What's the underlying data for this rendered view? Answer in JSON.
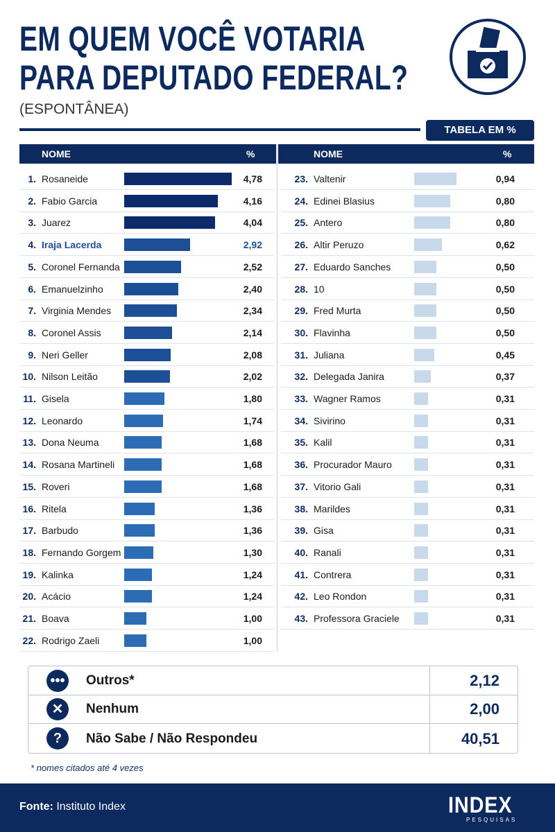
{
  "header": {
    "title_line1": "EM QUEM VOCÊ VOTARIA",
    "title_line2": "PARA DEPUTADO FEDERAL?",
    "subtitle": "(ESPONTÂNEA)",
    "badge": "TABELA EM %"
  },
  "table": {
    "columns": [
      {
        "name": "NOME",
        "percent": "%"
      },
      {
        "name": "NOME",
        "percent": "%"
      }
    ],
    "left": [
      {
        "rank": "1.",
        "name": "Rosaneide",
        "value": 4.78,
        "label": "4,78"
      },
      {
        "rank": "2.",
        "name": "Fabio Garcia",
        "value": 4.16,
        "label": "4,16"
      },
      {
        "rank": "3.",
        "name": "Juarez",
        "value": 4.04,
        "label": "4,04"
      },
      {
        "rank": "4.",
        "name": "Iraja Lacerda",
        "value": 2.92,
        "label": "2,92",
        "highlight": true
      },
      {
        "rank": "5.",
        "name": "Coronel Fernanda",
        "value": 2.52,
        "label": "2,52"
      },
      {
        "rank": "6.",
        "name": "Emanuelzinho",
        "value": 2.4,
        "label": "2,40"
      },
      {
        "rank": "7.",
        "name": "Virginia Mendes",
        "value": 2.34,
        "label": "2,34"
      },
      {
        "rank": "8.",
        "name": "Coronel Assis",
        "value": 2.14,
        "label": "2,14"
      },
      {
        "rank": "9.",
        "name": "Neri Geller",
        "value": 2.08,
        "label": "2,08"
      },
      {
        "rank": "10.",
        "name": "Nilson Leitão",
        "value": 2.02,
        "label": "2,02"
      },
      {
        "rank": "11.",
        "name": "Gisela",
        "value": 1.8,
        "label": "1,80"
      },
      {
        "rank": "12.",
        "name": "Leonardo",
        "value": 1.74,
        "label": "1,74"
      },
      {
        "rank": "13.",
        "name": "Dona Neuma",
        "value": 1.68,
        "label": "1,68"
      },
      {
        "rank": "14.",
        "name": "Rosana Martineli",
        "value": 1.68,
        "label": "1,68"
      },
      {
        "rank": "15.",
        "name": "Roveri",
        "value": 1.68,
        "label": "1,68"
      },
      {
        "rank": "16.",
        "name": "Ritela",
        "value": 1.36,
        "label": "1,36"
      },
      {
        "rank": "17.",
        "name": "Barbudo",
        "value": 1.36,
        "label": "1,36"
      },
      {
        "rank": "18.",
        "name": "Fernando Gorgem",
        "value": 1.3,
        "label": "1,30"
      },
      {
        "rank": "19.",
        "name": "Kalinka",
        "value": 1.24,
        "label": "1,24"
      },
      {
        "rank": "20.",
        "name": "Acácio",
        "value": 1.24,
        "label": "1,24"
      },
      {
        "rank": "21.",
        "name": "Boava",
        "value": 1.0,
        "label": "1,00"
      },
      {
        "rank": "22.",
        "name": "Rodrigo Zaeli",
        "value": 1.0,
        "label": "1,00"
      }
    ],
    "right": [
      {
        "rank": "23.",
        "name": "Valtenir",
        "value": 0.94,
        "label": "0,94"
      },
      {
        "rank": "24.",
        "name": "Edinei Blasius",
        "value": 0.8,
        "label": "0,80"
      },
      {
        "rank": "25.",
        "name": "Antero",
        "value": 0.8,
        "label": "0,80"
      },
      {
        "rank": "26.",
        "name": "Altir Peruzo",
        "value": 0.62,
        "label": "0,62"
      },
      {
        "rank": "27.",
        "name": "Eduardo Sanches",
        "value": 0.5,
        "label": "0,50"
      },
      {
        "rank": "28.",
        "name": "10",
        "value": 0.5,
        "label": "0,50"
      },
      {
        "rank": "29.",
        "name": "Fred Murta",
        "value": 0.5,
        "label": "0,50"
      },
      {
        "rank": "30.",
        "name": "Flavinha",
        "value": 0.5,
        "label": "0,50"
      },
      {
        "rank": "31.",
        "name": "Juliana",
        "value": 0.45,
        "label": "0,45"
      },
      {
        "rank": "32.",
        "name": "Delegada Janira",
        "value": 0.37,
        "label": "0,37"
      },
      {
        "rank": "33.",
        "name": "Wagner Ramos",
        "value": 0.31,
        "label": "0,31"
      },
      {
        "rank": "34.",
        "name": "Sivirino",
        "value": 0.31,
        "label": "0,31"
      },
      {
        "rank": "35.",
        "name": "Kalil",
        "value": 0.31,
        "label": "0,31"
      },
      {
        "rank": "36.",
        "name": "Procurador Mauro",
        "value": 0.31,
        "label": "0,31"
      },
      {
        "rank": "37.",
        "name": "Vitorio Gali",
        "value": 0.31,
        "label": "0,31"
      },
      {
        "rank": "38.",
        "name": "Marildes",
        "value": 0.31,
        "label": "0,31"
      },
      {
        "rank": "39.",
        "name": "Gisa",
        "value": 0.31,
        "label": "0,31"
      },
      {
        "rank": "40.",
        "name": "Ranali",
        "value": 0.31,
        "label": "0,31"
      },
      {
        "rank": "41.",
        "name": "Contrera",
        "value": 0.31,
        "label": "0,31"
      },
      {
        "rank": "42.",
        "name": "Leo Rondon",
        "value": 0.31,
        "label": "0,31"
      },
      {
        "rank": "43.",
        "name": "Professora Graciele",
        "value": 0.31,
        "label": "0,31"
      }
    ]
  },
  "summary": [
    {
      "label": "Outros*",
      "value": "2,12"
    },
    {
      "label": "Nenhum",
      "value": "2,00"
    },
    {
      "label": "Não Sabe / Não Respondeu",
      "value": "40,51"
    }
  ],
  "footnote": "* nomes citados até 4 vezes",
  "footer": {
    "source_label": "Fonte:",
    "source": "Instituto Index",
    "logo": "INDEX",
    "logo_sub": "PESQUISAS"
  }
}
